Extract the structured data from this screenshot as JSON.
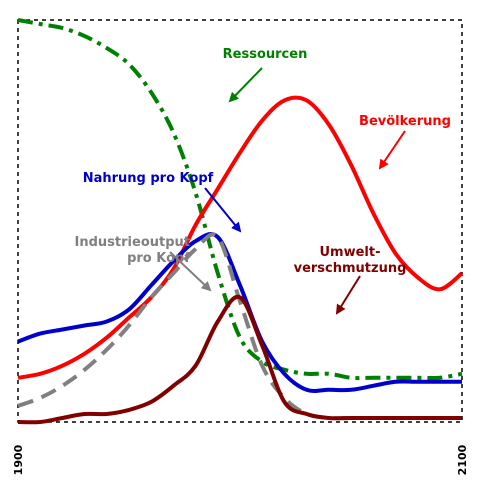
{
  "chart_data": {
    "type": "line",
    "title": "",
    "xlabel": "",
    "ylabel": "",
    "xlim": [
      1900,
      2100
    ],
    "ylim": [
      0,
      1
    ],
    "grid": false,
    "x_ticks": [
      "1900",
      "2100"
    ],
    "series": [
      {
        "name": "Ressourcen",
        "label_lines": [
          "Ressourcen"
        ],
        "color": "#008000",
        "dash": "dashdot",
        "points": [
          [
            1900,
            1.0
          ],
          [
            1910,
            0.99
          ],
          [
            1920,
            0.98
          ],
          [
            1930,
            0.96
          ],
          [
            1940,
            0.93
          ],
          [
            1950,
            0.89
          ],
          [
            1960,
            0.82
          ],
          [
            1970,
            0.72
          ],
          [
            1980,
            0.57
          ],
          [
            1990,
            0.37
          ],
          [
            2000,
            0.21
          ],
          [
            2010,
            0.15
          ],
          [
            2020,
            0.13
          ],
          [
            2030,
            0.12
          ],
          [
            2040,
            0.12
          ],
          [
            2050,
            0.11
          ],
          [
            2060,
            0.11
          ],
          [
            2070,
            0.11
          ],
          [
            2080,
            0.11
          ],
          [
            2090,
            0.11
          ],
          [
            2100,
            0.12
          ]
        ]
      },
      {
        "name": "Bevölkerung",
        "label_lines": [
          "Bevölkerung"
        ],
        "color": "#ff0000",
        "dash": "solid",
        "points": [
          [
            1900,
            0.11
          ],
          [
            1910,
            0.12
          ],
          [
            1920,
            0.14
          ],
          [
            1930,
            0.17
          ],
          [
            1940,
            0.21
          ],
          [
            1950,
            0.26
          ],
          [
            1960,
            0.31
          ],
          [
            1970,
            0.38
          ],
          [
            1980,
            0.49
          ],
          [
            1990,
            0.58
          ],
          [
            2000,
            0.67
          ],
          [
            2010,
            0.75
          ],
          [
            2020,
            0.8
          ],
          [
            2030,
            0.8
          ],
          [
            2040,
            0.74
          ],
          [
            2050,
            0.64
          ],
          [
            2060,
            0.52
          ],
          [
            2070,
            0.42
          ],
          [
            2080,
            0.36
          ],
          [
            2090,
            0.33
          ],
          [
            2100,
            0.37
          ]
        ]
      },
      {
        "name": "Nahrung pro Kopf",
        "label_lines": [
          "Nahrung pro Kopf"
        ],
        "color": "#0000cc",
        "dash": "solid",
        "points": [
          [
            1900,
            0.2
          ],
          [
            1910,
            0.22
          ],
          [
            1920,
            0.23
          ],
          [
            1930,
            0.24
          ],
          [
            1940,
            0.25
          ],
          [
            1950,
            0.28
          ],
          [
            1960,
            0.34
          ],
          [
            1970,
            0.4
          ],
          [
            1980,
            0.45
          ],
          [
            1990,
            0.46
          ],
          [
            2000,
            0.34
          ],
          [
            2010,
            0.2
          ],
          [
            2020,
            0.12
          ],
          [
            2030,
            0.08
          ],
          [
            2040,
            0.08
          ],
          [
            2050,
            0.08
          ],
          [
            2060,
            0.09
          ],
          [
            2070,
            0.1
          ],
          [
            2080,
            0.1
          ],
          [
            2090,
            0.1
          ],
          [
            2100,
            0.1
          ]
        ]
      },
      {
        "name": "Industrieoutput pro Kopf",
        "label_lines": [
          "Industrieoutput",
          "pro Kopf"
        ],
        "color": "#808080",
        "dash": "dashed",
        "points": [
          [
            1900,
            0.04
          ],
          [
            1910,
            0.06
          ],
          [
            1920,
            0.09
          ],
          [
            1930,
            0.13
          ],
          [
            1940,
            0.18
          ],
          [
            1950,
            0.24
          ],
          [
            1960,
            0.31
          ],
          [
            1970,
            0.37
          ],
          [
            1980,
            0.43
          ],
          [
            1990,
            0.46
          ],
          [
            2000,
            0.3
          ],
          [
            2010,
            0.14
          ],
          [
            2020,
            0.06
          ],
          [
            2030,
            0.02
          ],
          [
            2040,
            0.01
          ],
          [
            2050,
            0.01
          ],
          [
            2060,
            0.01
          ],
          [
            2070,
            0.01
          ],
          [
            2080,
            0.01
          ],
          [
            2090,
            0.01
          ],
          [
            2100,
            0.01
          ]
        ]
      },
      {
        "name": "Umweltverschmutzung",
        "label_lines": [
          "Umwelt-",
          "verschmutzung"
        ],
        "color": "#800000",
        "dash": "solid",
        "points": [
          [
            1900,
            0.0
          ],
          [
            1910,
            0.0
          ],
          [
            1920,
            0.01
          ],
          [
            1930,
            0.02
          ],
          [
            1940,
            0.02
          ],
          [
            1950,
            0.03
          ],
          [
            1960,
            0.05
          ],
          [
            1970,
            0.09
          ],
          [
            1980,
            0.14
          ],
          [
            1990,
            0.25
          ],
          [
            2000,
            0.31
          ],
          [
            2010,
            0.19
          ],
          [
            2020,
            0.05
          ],
          [
            2030,
            0.02
          ],
          [
            2040,
            0.01
          ],
          [
            2050,
            0.01
          ],
          [
            2060,
            0.01
          ],
          [
            2070,
            0.01
          ],
          [
            2080,
            0.01
          ],
          [
            2090,
            0.01
          ],
          [
            2100,
            0.01
          ]
        ]
      }
    ]
  }
}
